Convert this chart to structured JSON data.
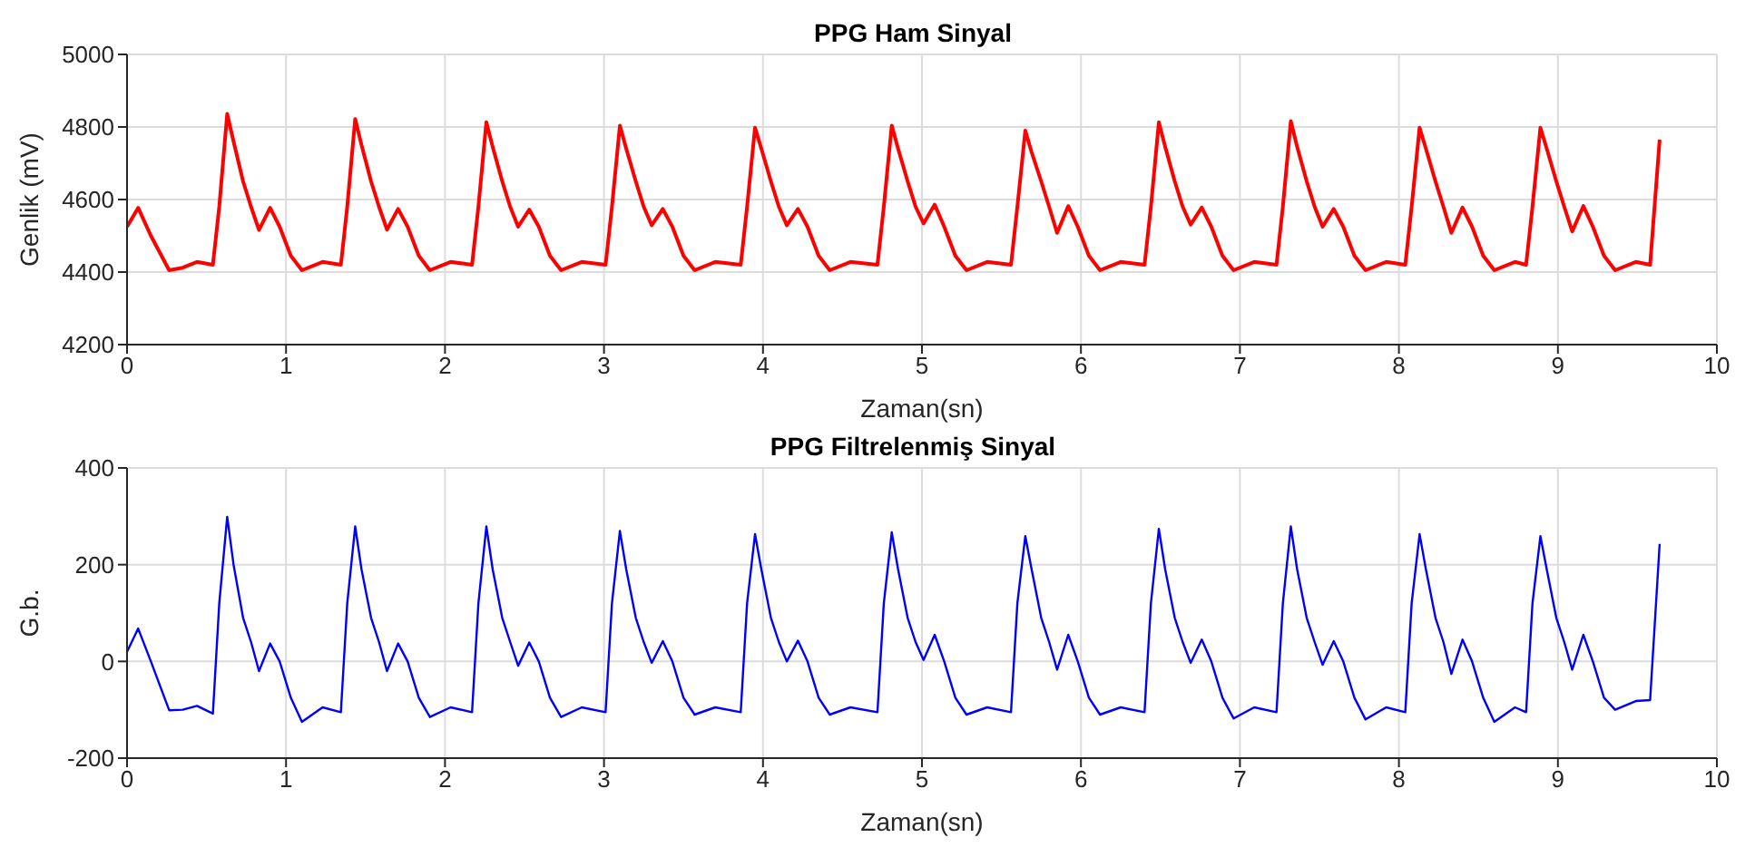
{
  "chart_data": [
    {
      "type": "line",
      "title": "PPG Ham Sinyal",
      "xlabel": "Zaman(sn)",
      "ylabel": "Genlik (mV)",
      "x": [
        0,
        0.07,
        0.15,
        0.265,
        0.35,
        0.44,
        0.54,
        0.58,
        0.63,
        0.67,
        0.73,
        0.78,
        0.83,
        0.9,
        0.96,
        1.03,
        1.1,
        1.23,
        1.345,
        1.385,
        1.435,
        1.475,
        1.535,
        1.585,
        1.635,
        1.705,
        1.765,
        1.835,
        1.905,
        2.035,
        2.17,
        2.21,
        2.26,
        2.3,
        2.36,
        2.41,
        2.46,
        2.53,
        2.59,
        2.66,
        2.73,
        2.86,
        3.01,
        3.05,
        3.1,
        3.14,
        3.2,
        3.25,
        3.3,
        3.37,
        3.43,
        3.5,
        3.57,
        3.7,
        3.86,
        3.9,
        3.95,
        3.99,
        4.05,
        4.1,
        4.15,
        4.22,
        4.28,
        4.35,
        4.42,
        4.55,
        4.72,
        4.76,
        4.81,
        4.85,
        4.91,
        4.96,
        5.01,
        5.08,
        5.14,
        5.21,
        5.28,
        5.41,
        5.56,
        5.6,
        5.65,
        5.69,
        5.75,
        5.8,
        5.85,
        5.92,
        5.98,
        6.05,
        6.12,
        6.25,
        6.4,
        6.44,
        6.49,
        6.53,
        6.59,
        6.64,
        6.69,
        6.76,
        6.82,
        6.89,
        6.96,
        7.09,
        7.23,
        7.27,
        7.32,
        7.36,
        7.42,
        7.47,
        7.52,
        7.59,
        7.65,
        7.72,
        7.79,
        7.92,
        8.04,
        8.08,
        8.13,
        8.17,
        8.23,
        8.28,
        8.33,
        8.4,
        8.46,
        8.53,
        8.6,
        8.73,
        8.8,
        8.84,
        8.89,
        8.93,
        8.99,
        9.04,
        9.09,
        9.16,
        9.22,
        9.29,
        9.36,
        9.49,
        9.58,
        9.64
      ],
      "series": [
        {
          "color": "#ff0000",
          "values": [
            4525,
            4577,
            4500,
            4405,
            4412,
            4428,
            4420,
            4580,
            4836,
            4760,
            4650,
            4580,
            4516,
            4577,
            4525,
            4445,
            4405,
            4428,
            4420,
            4580,
            4822,
            4750,
            4650,
            4580,
            4517,
            4574,
            4525,
            4445,
            4405,
            4428,
            4420,
            4580,
            4813,
            4745,
            4650,
            4580,
            4525,
            4572,
            4525,
            4445,
            4405,
            4428,
            4420,
            4580,
            4804,
            4740,
            4650,
            4580,
            4529,
            4574,
            4525,
            4445,
            4405,
            4428,
            4420,
            4580,
            4798,
            4740,
            4650,
            4580,
            4529,
            4574,
            4525,
            4445,
            4405,
            4428,
            4420,
            4580,
            4804,
            4740,
            4650,
            4580,
            4534,
            4586,
            4525,
            4445,
            4405,
            4428,
            4420,
            4580,
            4790,
            4730,
            4650,
            4580,
            4508,
            4582,
            4525,
            4445,
            4405,
            4428,
            4420,
            4580,
            4813,
            4745,
            4650,
            4580,
            4531,
            4578,
            4525,
            4445,
            4405,
            4428,
            4420,
            4580,
            4816,
            4745,
            4650,
            4580,
            4525,
            4574,
            4525,
            4445,
            4405,
            4428,
            4420,
            4580,
            4798,
            4740,
            4650,
            4580,
            4508,
            4578,
            4525,
            4445,
            4405,
            4428,
            4420,
            4580,
            4798,
            4740,
            4650,
            4580,
            4512,
            4582,
            4525,
            4445,
            4405,
            4428,
            4420,
            4765
          ]
        }
      ],
      "xlim": [
        0,
        10
      ],
      "xticks": [
        0,
        1,
        2,
        3,
        4,
        5,
        6,
        7,
        8,
        9,
        10
      ],
      "ylim": [
        4200,
        5000
      ],
      "yticks": [
        4200,
        4400,
        4600,
        4800,
        5000
      ],
      "grid": true
    },
    {
      "type": "line",
      "title": "PPG Filtrelenmiş Sinyal",
      "xlabel": "Zaman(sn)",
      "ylabel": "G.b.",
      "x": [
        0,
        0.07,
        0.15,
        0.265,
        0.35,
        0.44,
        0.54,
        0.58,
        0.63,
        0.67,
        0.73,
        0.78,
        0.83,
        0.9,
        0.96,
        1.03,
        1.1,
        1.23,
        1.345,
        1.385,
        1.435,
        1.475,
        1.535,
        1.585,
        1.635,
        1.705,
        1.765,
        1.835,
        1.905,
        2.035,
        2.17,
        2.21,
        2.26,
        2.3,
        2.36,
        2.41,
        2.46,
        2.53,
        2.59,
        2.66,
        2.73,
        2.86,
        3.01,
        3.05,
        3.1,
        3.14,
        3.2,
        3.25,
        3.3,
        3.37,
        3.43,
        3.5,
        3.57,
        3.7,
        3.86,
        3.9,
        3.95,
        3.99,
        4.05,
        4.1,
        4.15,
        4.22,
        4.28,
        4.35,
        4.42,
        4.55,
        4.72,
        4.76,
        4.81,
        4.85,
        4.91,
        4.96,
        5.01,
        5.08,
        5.14,
        5.21,
        5.28,
        5.41,
        5.56,
        5.6,
        5.65,
        5.69,
        5.75,
        5.8,
        5.85,
        5.92,
        5.98,
        6.05,
        6.12,
        6.25,
        6.4,
        6.44,
        6.49,
        6.53,
        6.59,
        6.64,
        6.69,
        6.76,
        6.82,
        6.89,
        6.96,
        7.09,
        7.23,
        7.27,
        7.32,
        7.36,
        7.42,
        7.47,
        7.52,
        7.59,
        7.65,
        7.72,
        7.79,
        7.92,
        8.04,
        8.08,
        8.13,
        8.17,
        8.23,
        8.28,
        8.33,
        8.4,
        8.46,
        8.53,
        8.6,
        8.73,
        8.8,
        8.84,
        8.89,
        8.93,
        8.99,
        9.04,
        9.09,
        9.16,
        9.22,
        9.29,
        9.36,
        9.49,
        9.58,
        9.64
      ],
      "series": [
        {
          "color": "#0000ff",
          "values": [
            20,
            68,
            0,
            -101,
            -100,
            -92,
            -108,
            120,
            299,
            200,
            90,
            40,
            -20,
            37,
            0,
            -75,
            -125,
            -95,
            -105,
            120,
            279,
            190,
            90,
            40,
            -20,
            37,
            0,
            -75,
            -115,
            -95,
            -105,
            120,
            279,
            190,
            90,
            40,
            -9,
            39,
            0,
            -75,
            -115,
            -95,
            -105,
            120,
            270,
            190,
            90,
            40,
            -3,
            42,
            0,
            -75,
            -110,
            -95,
            -105,
            120,
            263,
            190,
            90,
            40,
            0,
            43,
            0,
            -75,
            -110,
            -95,
            -105,
            120,
            267,
            190,
            90,
            40,
            3,
            55,
            0,
            -75,
            -110,
            -95,
            -105,
            120,
            259,
            190,
            90,
            40,
            -17,
            55,
            0,
            -75,
            -110,
            -95,
            -105,
            120,
            274,
            190,
            90,
            40,
            -3,
            45,
            0,
            -75,
            -118,
            -95,
            -105,
            120,
            279,
            190,
            90,
            40,
            -7,
            42,
            0,
            -75,
            -120,
            -95,
            -105,
            120,
            263,
            190,
            90,
            40,
            -26,
            45,
            0,
            -75,
            -125,
            -95,
            -105,
            120,
            259,
            190,
            90,
            40,
            -17,
            55,
            0,
            -75,
            -100,
            -82,
            -80,
            243
          ]
        }
      ],
      "xlim": [
        0,
        10
      ],
      "xticks": [
        0,
        1,
        2,
        3,
        4,
        5,
        6,
        7,
        8,
        9,
        10
      ],
      "ylim": [
        -200,
        400
      ],
      "yticks": [
        -200,
        0,
        200,
        400
      ],
      "grid": true
    }
  ]
}
